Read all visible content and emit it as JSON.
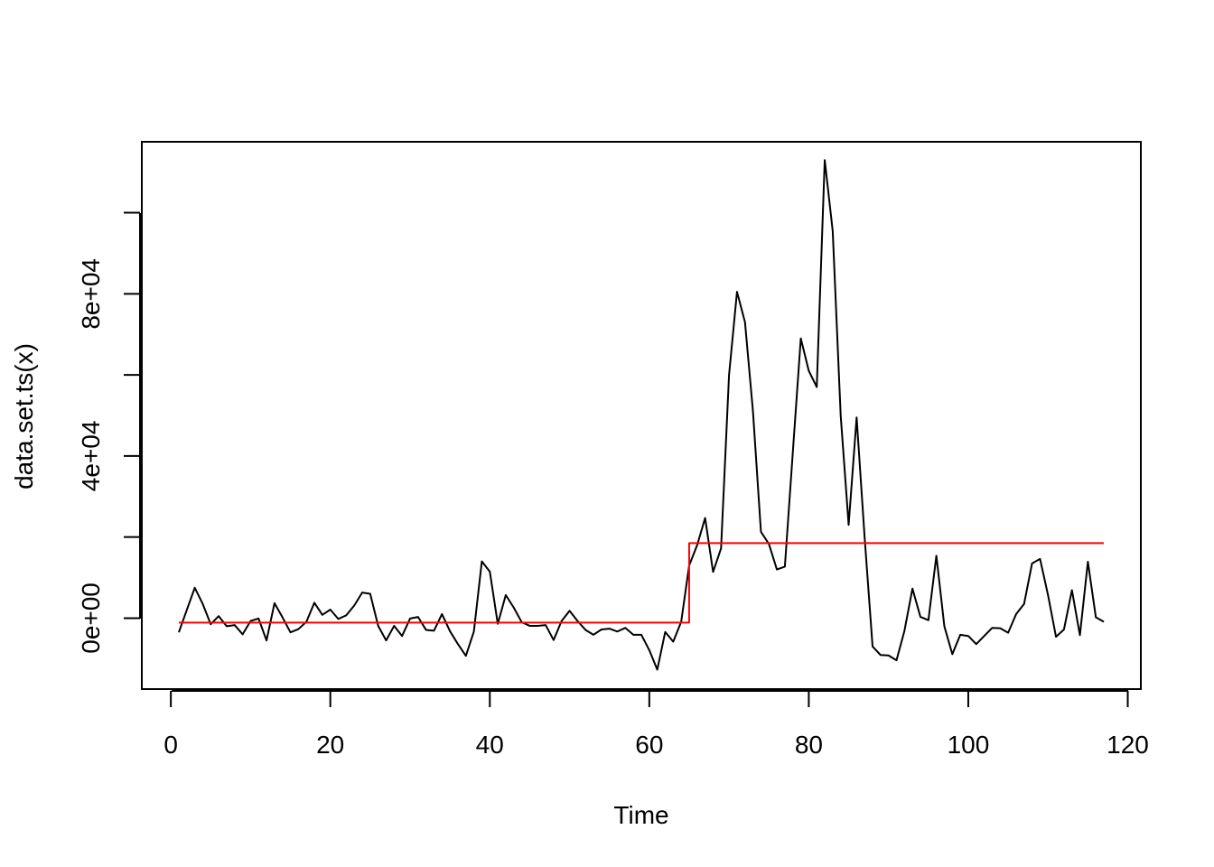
{
  "chart_data": {
    "type": "line",
    "xlabel": "Time",
    "ylabel": "data.set.ts(x)",
    "xlim": [
      1,
      117
    ],
    "ylim": [
      -17500,
      117500
    ],
    "x_ticks": [
      0,
      20,
      40,
      60,
      80,
      100,
      120
    ],
    "x_tick_labels": [
      "0",
      "20",
      "40",
      "60",
      "80",
      "100",
      "120"
    ],
    "y_ticks": [
      0,
      20000,
      40000,
      60000,
      80000,
      100000
    ],
    "y_tick_labels": [
      "0e+00",
      "",
      "4e+04",
      "",
      "8e+04",
      ""
    ],
    "grid": false,
    "series": [
      {
        "color": "#000000",
        "x": [
          1,
          2,
          3,
          4,
          5,
          6,
          7,
          8,
          9,
          10,
          11,
          12,
          13,
          14,
          15,
          16,
          17,
          18,
          19,
          20,
          21,
          22,
          23,
          24,
          25,
          26,
          27,
          28,
          29,
          30,
          31,
          32,
          33,
          34,
          35,
          36,
          37,
          38,
          39,
          40,
          41,
          42,
          43,
          44,
          45,
          46,
          47,
          48,
          49,
          50,
          51,
          52,
          53,
          54,
          55,
          56,
          57,
          58,
          59,
          60,
          61,
          62,
          63,
          64,
          65,
          66,
          67,
          68,
          69,
          70,
          71,
          72,
          73,
          74,
          75,
          76,
          77,
          78,
          79,
          80,
          81,
          82,
          83,
          84,
          85,
          86,
          87,
          88,
          89,
          90,
          91,
          92,
          93,
          94,
          95,
          96,
          97,
          98,
          99,
          100,
          101,
          102,
          103,
          104,
          105,
          106,
          107,
          108,
          109,
          110,
          111,
          112,
          113,
          114,
          115,
          116,
          117
        ],
        "values": [
          -3500,
          2000,
          7500,
          3500,
          -1500,
          500,
          -2000,
          -1700,
          -4000,
          -700,
          -100,
          -5500,
          3700,
          200,
          -3500,
          -2700,
          -900,
          3800,
          800,
          2100,
          -200,
          700,
          3100,
          6300,
          6000,
          -1900,
          -5500,
          -1900,
          -4400,
          -100,
          300,
          -2900,
          -3100,
          1000,
          -3200,
          -6400,
          -9300,
          -3300,
          14000,
          11500,
          -1400,
          5700,
          2600,
          -1000,
          -1900,
          -1900,
          -1700,
          -5400,
          -700,
          1800,
          -700,
          -2900,
          -4100,
          -2800,
          -2600,
          -3300,
          -2400,
          -4100,
          -4100,
          -7900,
          -12700,
          -3400,
          -5800,
          -900,
          13000,
          18000,
          24700,
          11400,
          17200,
          60000,
          80500,
          73000,
          51000,
          21300,
          18300,
          12000,
          12700,
          41000,
          69000,
          61000,
          57000,
          113000,
          95500,
          50000,
          23000,
          49500,
          20000,
          -7000,
          -9100,
          -9200,
          -10400,
          -3100,
          7300,
          300,
          -500,
          15400,
          -2000,
          -8900,
          -4100,
          -4400,
          -6400,
          -4400,
          -2400,
          -2500,
          -3600,
          1000,
          3500,
          13500,
          14600,
          5700,
          -4600,
          -2800,
          6900,
          -4200,
          13900,
          200,
          -900
        ]
      },
      {
        "color": "#ff0000",
        "step": true,
        "x": [
          1,
          65,
          65,
          117
        ],
        "values": [
          -1100,
          -1100,
          18500,
          18500
        ]
      }
    ]
  }
}
